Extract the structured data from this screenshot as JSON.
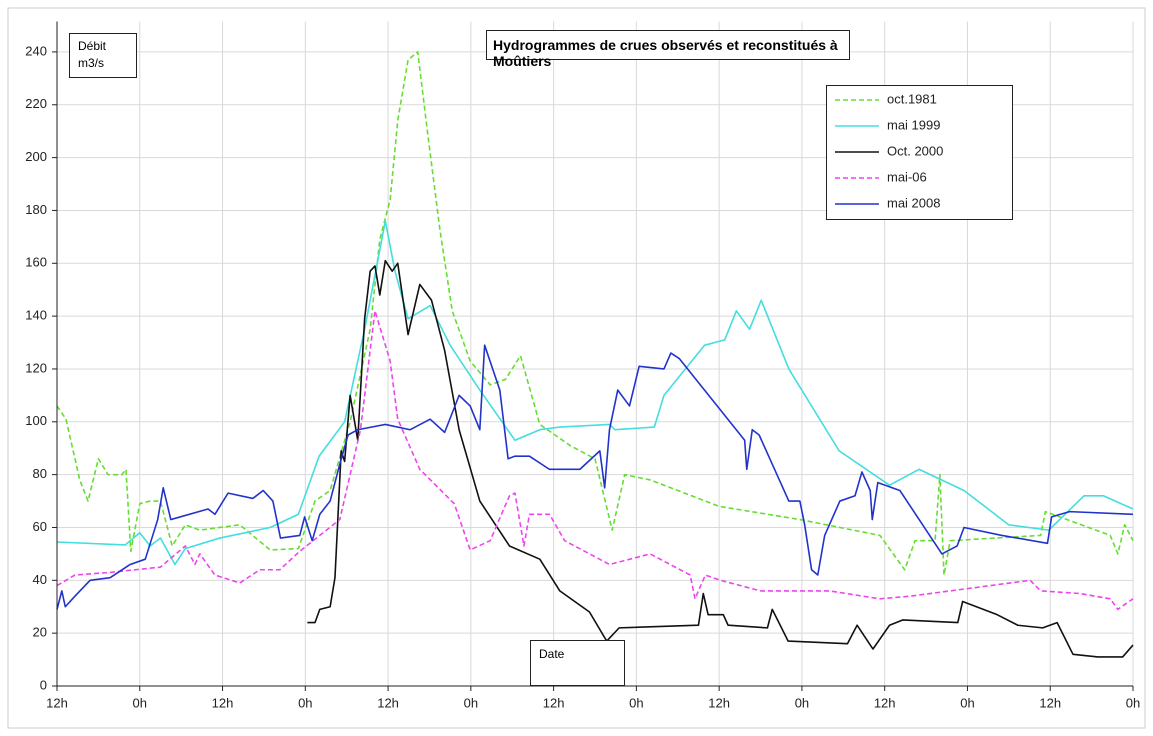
{
  "chart_data": {
    "type": "line",
    "title": "Hydrogrammes de crues observés et reconstitués à Moûtiers",
    "y_label": "Débit m3/s",
    "x_label": "Date",
    "grid": true,
    "legend": "upper right",
    "xlim": [
      0,
      156
    ],
    "ylim": [
      0,
      250
    ],
    "xticks": [
      {
        "value": 0,
        "label": "12h"
      },
      {
        "value": 12,
        "label": "0h"
      },
      {
        "value": 24,
        "label": "12h"
      },
      {
        "value": 36,
        "label": "0h"
      },
      {
        "value": 48,
        "label": "12h"
      },
      {
        "value": 60,
        "label": "0h"
      },
      {
        "value": 72,
        "label": "12h"
      },
      {
        "value": 84,
        "label": "0h"
      },
      {
        "value": 96,
        "label": "12h"
      },
      {
        "value": 108,
        "label": "0h"
      },
      {
        "value": 120,
        "label": "12h"
      },
      {
        "value": 132,
        "label": "0h"
      },
      {
        "value": 144,
        "label": "12h"
      },
      {
        "value": 156,
        "label": "0h"
      }
    ],
    "yticks": [
      0,
      20,
      40,
      60,
      80,
      100,
      120,
      140,
      160,
      180,
      200,
      220,
      240
    ],
    "series": [
      {
        "name": "oct.1981",
        "color": "#66dd33",
        "dash": true,
        "x": [
          0,
          1.3,
          3.3,
          4.5,
          6,
          7.4,
          9.4,
          10,
          10.7,
          12,
          13.5,
          15,
          16.7,
          18.6,
          20.7,
          26.5,
          30.9,
          35,
          37.4,
          39.6,
          42.5,
          45.4,
          46.8,
          48.3,
          49.4,
          50.9,
          52.3,
          53.7,
          55.5,
          57.3,
          59.9,
          62.8,
          65,
          67.2,
          70,
          74.4,
          78,
          80.5,
          82.3,
          86,
          96,
          107.7,
          119.3,
          122.9,
          124.4,
          127.3,
          128,
          128.6,
          129.5,
          142.6,
          143.3,
          152.7,
          153.8,
          154.8,
          156
        ],
        "values": [
          106,
          101,
          78,
          70,
          86,
          80,
          80,
          82,
          51,
          69,
          70,
          70,
          53,
          61,
          59,
          61,
          51.5,
          52,
          70,
          74,
          100,
          135,
          169,
          184,
          214,
          237,
          240,
          210,
          173,
          142,
          123,
          114,
          116,
          125,
          99,
          91,
          86,
          59,
          80,
          78,
          68,
          63,
          57,
          44,
          55,
          55,
          80,
          42,
          55,
          57,
          66,
          57,
          50,
          61,
          55
        ]
      },
      {
        "name": "mai 1999",
        "color": "#44dde0",
        "dash": false,
        "x": [
          0,
          9.9,
          12,
          13.5,
          15,
          17.1,
          18.6,
          23.6,
          30.9,
          35,
          38,
          41.7,
          44.6,
          47.6,
          49,
          50.9,
          54.1,
          57,
          61.3,
          66.4,
          70,
          72.9,
          80.1,
          80.9,
          86.6,
          88,
          93.9,
          96.8,
          98.5,
          100.4,
          102.1,
          106.1,
          113.4,
          120.7,
          125,
          131.5,
          138,
          143.8,
          148.9,
          151.7,
          156
        ],
        "values": [
          54.5,
          53.4,
          58,
          53,
          56,
          46,
          52,
          56,
          60,
          65,
          87,
          100,
          135,
          176,
          157,
          139,
          144,
          129,
          112,
          93,
          97,
          98,
          99,
          97,
          98,
          110,
          129,
          131,
          142,
          135,
          146,
          120,
          89,
          76,
          82,
          74,
          61,
          59,
          72,
          72,
          67
        ]
      },
      {
        "name": "Oct. 2000",
        "color": "#111111",
        "dash": false,
        "x": [
          36.3,
          37.4,
          38.1,
          39.6,
          40.3,
          41.2,
          41.7,
          42.5,
          43.6,
          44.6,
          45.4,
          46.1,
          46.8,
          47.6,
          48.6,
          49.4,
          50.9,
          52.6,
          54.3,
          56.2,
          58.3,
          61.3,
          65.6,
          70,
          72.9,
          77.2,
          79.7,
          81.5,
          93,
          93.7,
          94.4,
          96.6,
          97.3,
          103,
          103.7,
          106,
          114.6,
          116,
          118.3,
          120.7,
          122.6,
          130.6,
          131.3,
          136.3,
          139.3,
          142.9,
          145,
          147.3,
          150.9,
          154.5,
          156
        ],
        "values": [
          24,
          24,
          29,
          30,
          41,
          89,
          85,
          110,
          93,
          139,
          157,
          159,
          148,
          161,
          157,
          160,
          133,
          152,
          146,
          127,
          97,
          70,
          53,
          48,
          36,
          28,
          17,
          22,
          23,
          35,
          27,
          27,
          23,
          22,
          29,
          17,
          16,
          23,
          14,
          23,
          25,
          24,
          32,
          27,
          23,
          22,
          24,
          12,
          11,
          11,
          15.5
        ]
      },
      {
        "name": "mai-06",
        "color": "#ee44ee",
        "dash": true,
        "x": [
          0,
          2.6,
          7.7,
          15,
          18.6,
          20,
          20.7,
          22.9,
          26.5,
          29.4,
          32.3,
          35.2,
          41,
          44,
          46.1,
          48.3,
          49.4,
          52.6,
          57.6,
          59.9,
          62.8,
          65.6,
          66.4,
          67.7,
          68.5,
          71.4,
          73.6,
          80.1,
          86,
          91.8,
          92.5,
          94,
          96.2,
          102,
          112,
          119.3,
          123.7,
          129.5,
          141.1,
          142.6,
          148.3,
          152.7,
          153.8,
          156
        ],
        "values": [
          38,
          42,
          43,
          45,
          53,
          46,
          50,
          42,
          39,
          44,
          44,
          51,
          63,
          97,
          142,
          123,
          101,
          82,
          69,
          51.5,
          55,
          72,
          73,
          53,
          65,
          65,
          55,
          46,
          50,
          42,
          33,
          42,
          40,
          36,
          36,
          33,
          34,
          36,
          40,
          36,
          35,
          33,
          29,
          33
        ]
      },
      {
        "name": "mai 2008",
        "color": "#2233cc",
        "dash": false,
        "x": [
          0,
          0.7,
          1.2,
          2.6,
          4.8,
          7.7,
          10.6,
          12.8,
          14.6,
          15.4,
          16.5,
          21.9,
          22.9,
          24.8,
          28.4,
          29.9,
          31.3,
          32.4,
          35.2,
          35.9,
          37,
          38.1,
          39.6,
          41,
          42.2,
          43.6,
          47.6,
          51.2,
          54.1,
          56.2,
          58.3,
          59.9,
          61.3,
          62,
          64.2,
          65.4,
          66.4,
          68.5,
          71.4,
          75.8,
          78.7,
          79.4,
          80.1,
          81.3,
          83,
          84.4,
          88,
          89,
          90.2,
          99.7,
          100,
          100.8,
          101.8,
          106.1,
          107.7,
          108.4,
          109.4,
          110.3,
          111.3,
          113.5,
          115.7,
          116.7,
          117.9,
          118.2,
          119,
          122.2,
          128.3,
          130.5,
          131.5,
          137,
          143.6,
          144.2,
          146.8,
          156
        ],
        "values": [
          29,
          36,
          30,
          34,
          40,
          41,
          46,
          48,
          63,
          75,
          63,
          67,
          65,
          73,
          71,
          74,
          70,
          56,
          57,
          64,
          55,
          65,
          70,
          84,
          95,
          97,
          99,
          97,
          101,
          96,
          110,
          106,
          97,
          129,
          112,
          86,
          87,
          87,
          82,
          82,
          89,
          75,
          97,
          112,
          106,
          121,
          120,
          126,
          124,
          93,
          82,
          97,
          95,
          70,
          70,
          61,
          44,
          42,
          57,
          70,
          72,
          81,
          74,
          63,
          77,
          74,
          50,
          53,
          60,
          57,
          54,
          64,
          66,
          65
        ]
      }
    ]
  }
}
